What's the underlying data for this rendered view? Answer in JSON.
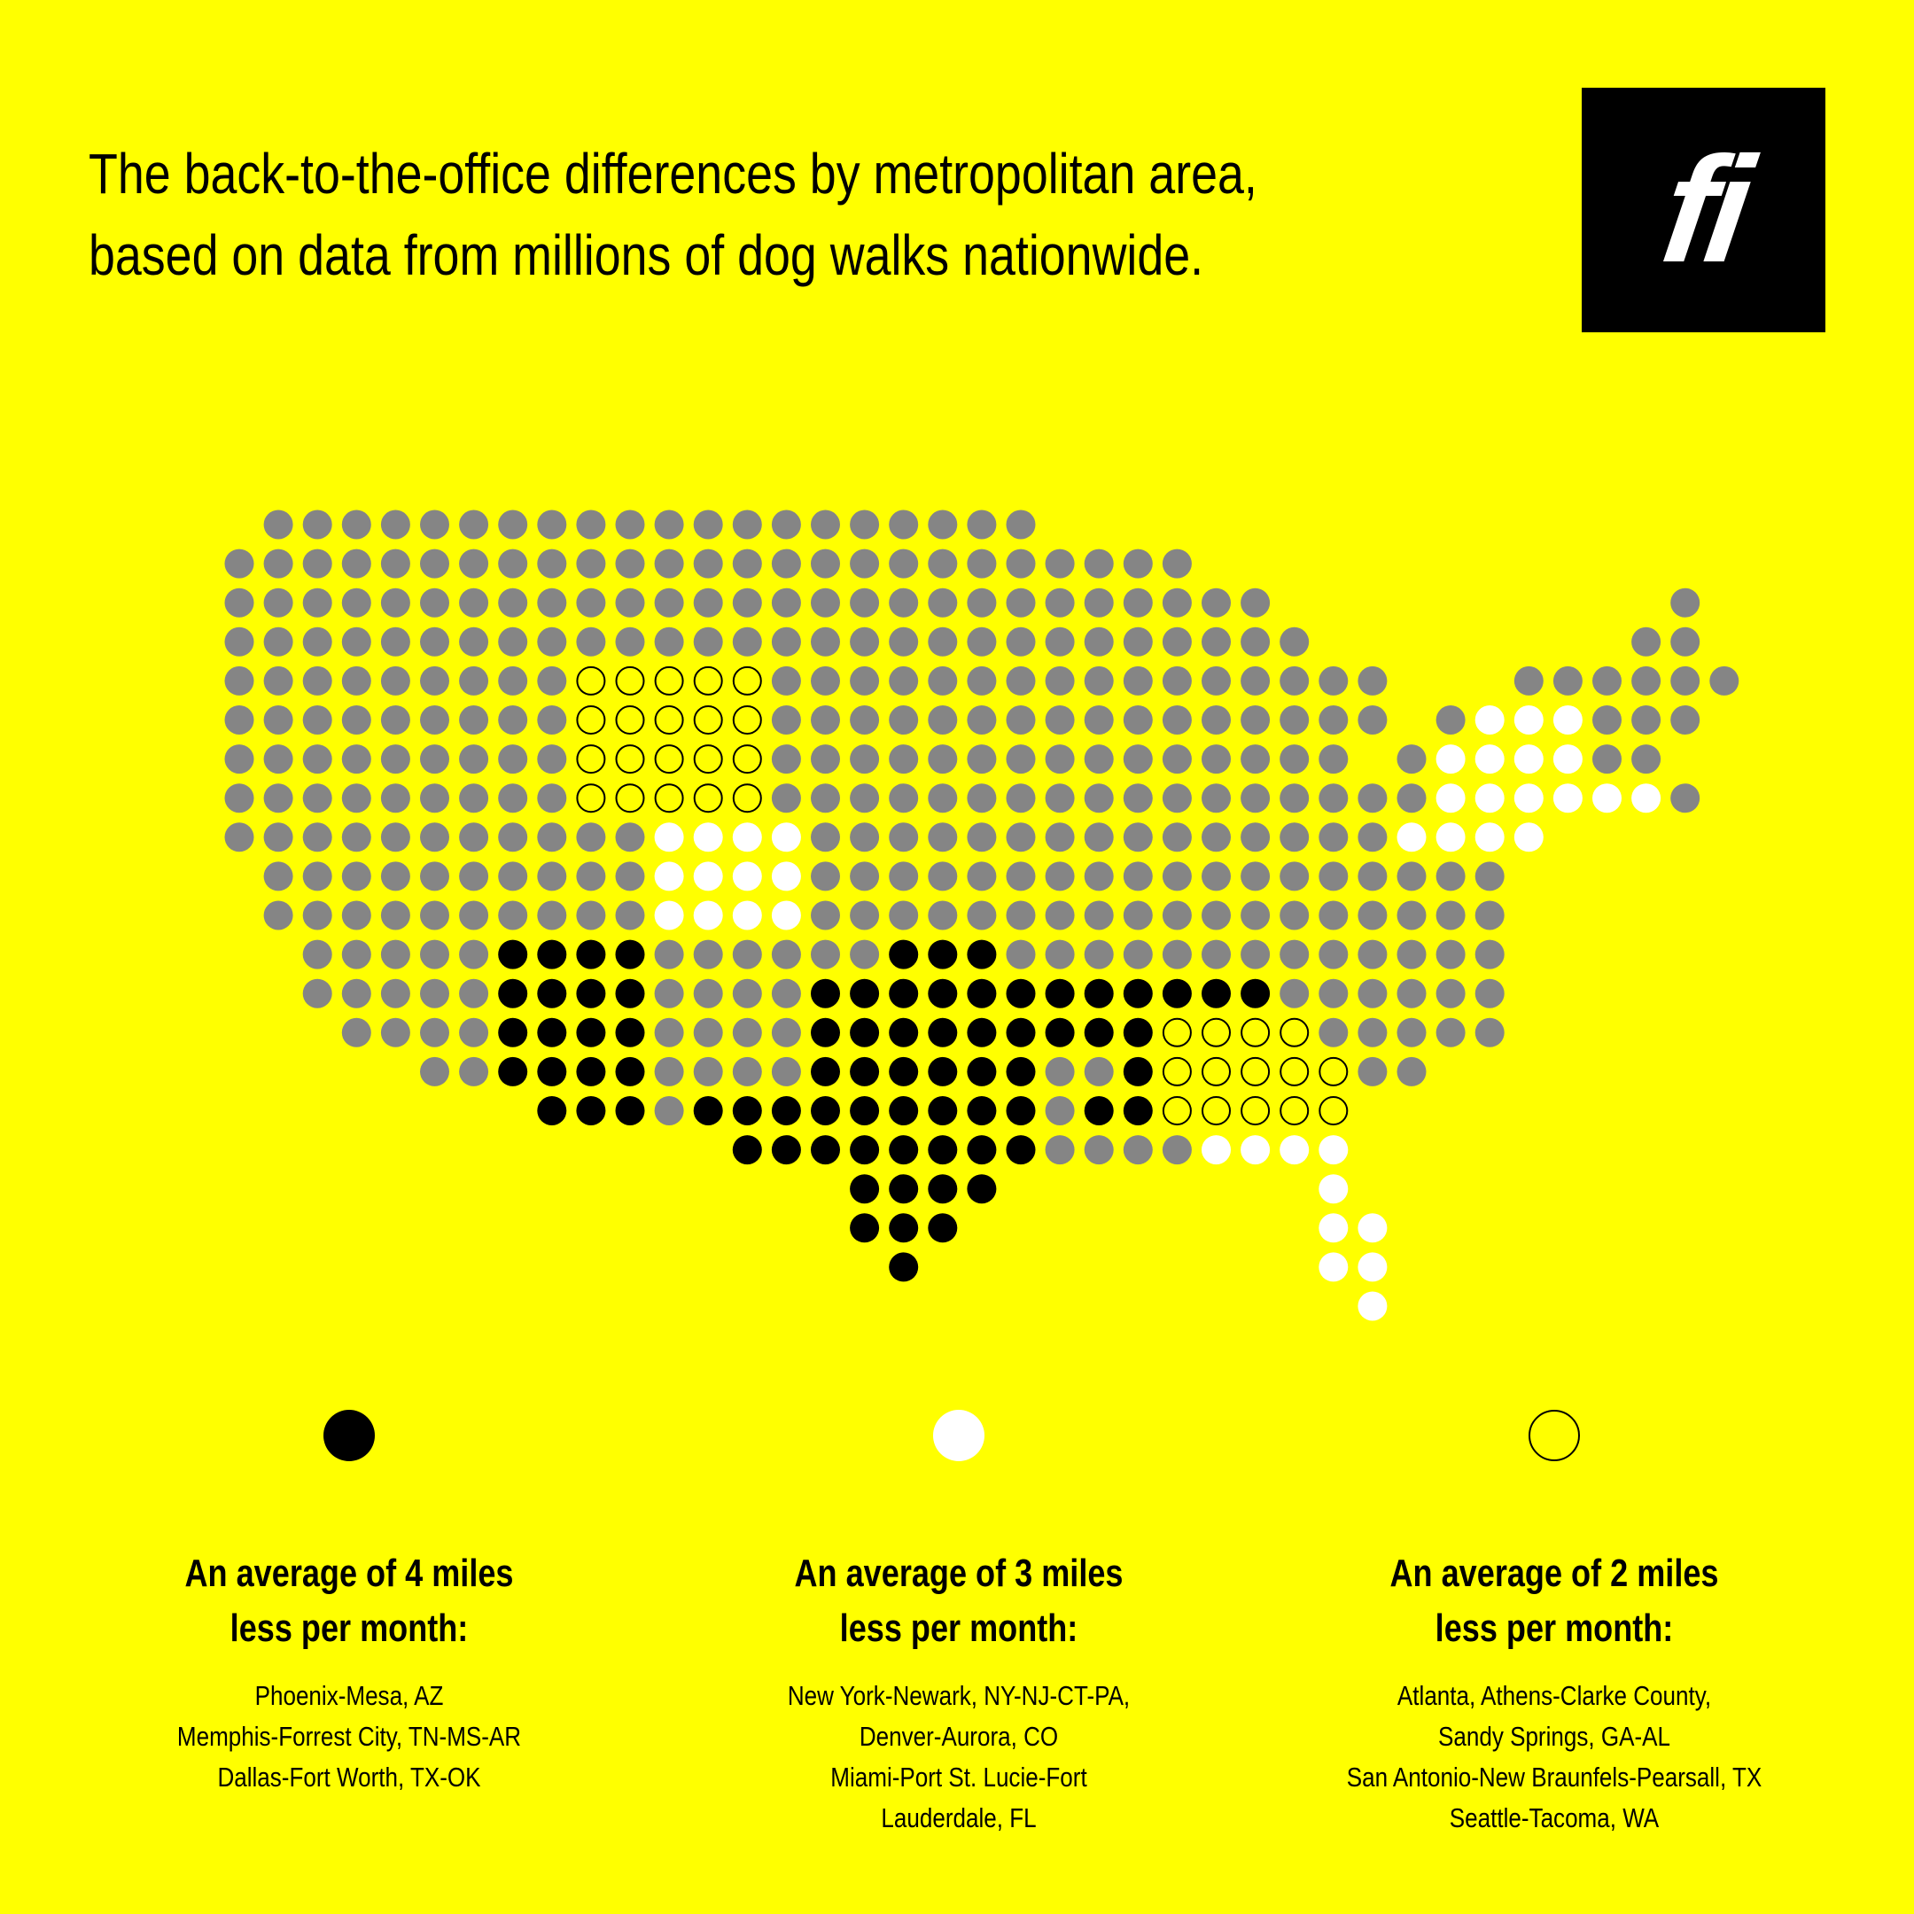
{
  "header": {
    "title_line1": "The back-to-the-office differences by metropolitan area,",
    "title_line2": "based on data from millions of dog walks nationwide.",
    "logo_text": "fi"
  },
  "colors": {
    "background": "#ffff00",
    "other": "#858585",
    "miles4": "#000000",
    "miles3": "#ffffff",
    "miles2": "#ffff00"
  },
  "chart_data": {
    "type": "dot-map",
    "legend_placement": "bottom",
    "categories": {
      "g": "other",
      "b": "4 miles less",
      "w": "3 miles less",
      "o": "2 miles less"
    },
    "rows": [
      ".gggggggggggggggggggg.................",
      "ggggggggggggggggggggggggg.............",
      "ggggggggggggggggggggggggggg..........g",
      "gggggggggggggggggggggggggggg........gg",
      "gggggggggooooogggggggggggggggg...gggggg",
      "gggggggggooooogggggggggggggggg.gwwwggg.",
      "gggggggggoooooggggggggggggggg.gwwwwgg..",
      "gggggggggooooogggggggggggggggggwwwwwwg.",
      "gggggggggggwwwwgggggggggggggggwwww....",
      ".ggggggggggwwwwgggggggggggggggggg.....",
      ".ggggggggggwwwwgggggggggggggggggg.....",
      "..gggggbbbbggggggbbbggggggggggggg.....",
      "..gggggbbbbggggbbbbbbbbbbbbgggggg.....",
      "...ggggbbbbggggbbbbbbbbbooooggggg......",
      ".....ggbbbbggggbbbbbbggbooooogg.......",
      "........bbbgbbbbbbbbbgbbooooo.........",
      ".............bbbbbbbbggggwwww.........",
      "................bbbb........w.........",
      "................bbb.........ww........",
      ".................b..........ww........",
      ".............................w........"
    ]
  },
  "legend": [
    {
      "type": "b",
      "heading1": "An average of 4 miles",
      "heading2": "less per month:",
      "items": [
        "Phoenix-Mesa, AZ",
        "Memphis-Forrest City, TN-MS-AR",
        "Dallas-Fort Worth, TX-OK"
      ]
    },
    {
      "type": "w",
      "heading1": "An average of 3 miles",
      "heading2": "less per month:",
      "items": [
        "New York-Newark, NY-NJ-CT-PA,",
        "Denver-Aurora, CO",
        "Miami-Port St. Lucie-Fort",
        "Lauderdale, FL"
      ]
    },
    {
      "type": "o",
      "heading1": "An average of 2 miles",
      "heading2": "less per month:",
      "items": [
        "Atlanta, Athens-Clarke County,",
        "Sandy Springs, GA-AL",
        "San Antonio-New Braunfels-Pearsall, TX",
        "Seattle-Tacoma, WA"
      ]
    }
  ]
}
